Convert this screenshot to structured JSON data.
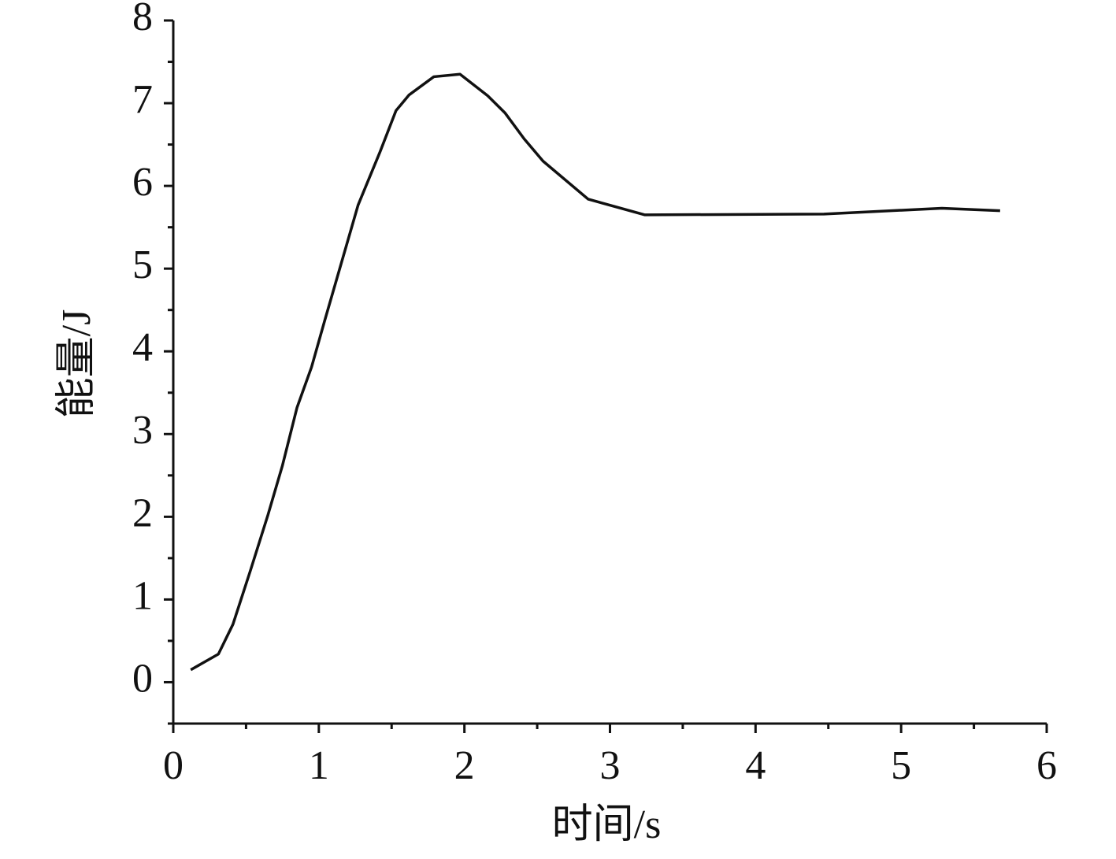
{
  "chart_data": {
    "type": "line",
    "x_label": "时间/s",
    "y_label": "能量/J",
    "x": [
      0.12,
      0.31,
      0.41,
      0.53,
      0.65,
      0.75,
      0.85,
      0.95,
      1.04,
      1.15,
      1.27,
      1.42,
      1.53,
      1.62,
      1.79,
      1.97,
      2.16,
      2.28,
      2.41,
      2.54,
      2.85,
      3.24,
      4.47,
      5.28,
      5.68
    ],
    "series": [
      {
        "color": "#111111",
        "values": [
          0.15,
          0.34,
          0.7,
          1.35,
          2.02,
          2.62,
          3.32,
          3.81,
          4.37,
          5.04,
          5.77,
          6.41,
          6.91,
          7.1,
          7.32,
          7.35,
          7.09,
          6.88,
          6.57,
          6.3,
          5.84,
          5.65,
          5.66,
          5.73,
          5.7
        ]
      }
    ],
    "xlim": [
      0,
      6
    ],
    "ylim": [
      -0.5,
      8
    ],
    "xticks": [
      0,
      1,
      2,
      3,
      4,
      5,
      6
    ],
    "yticks": [
      0,
      1,
      2,
      3,
      4,
      5,
      6,
      7,
      8
    ],
    "xminorticks": [
      0.5,
      1.5,
      2.5,
      3.5,
      4.5,
      5.5
    ],
    "yminorticks": [
      -0.5,
      0.5,
      1.5,
      2.5,
      3.5,
      4.5,
      5.5,
      6.5,
      7.5
    ],
    "grid": false
  }
}
